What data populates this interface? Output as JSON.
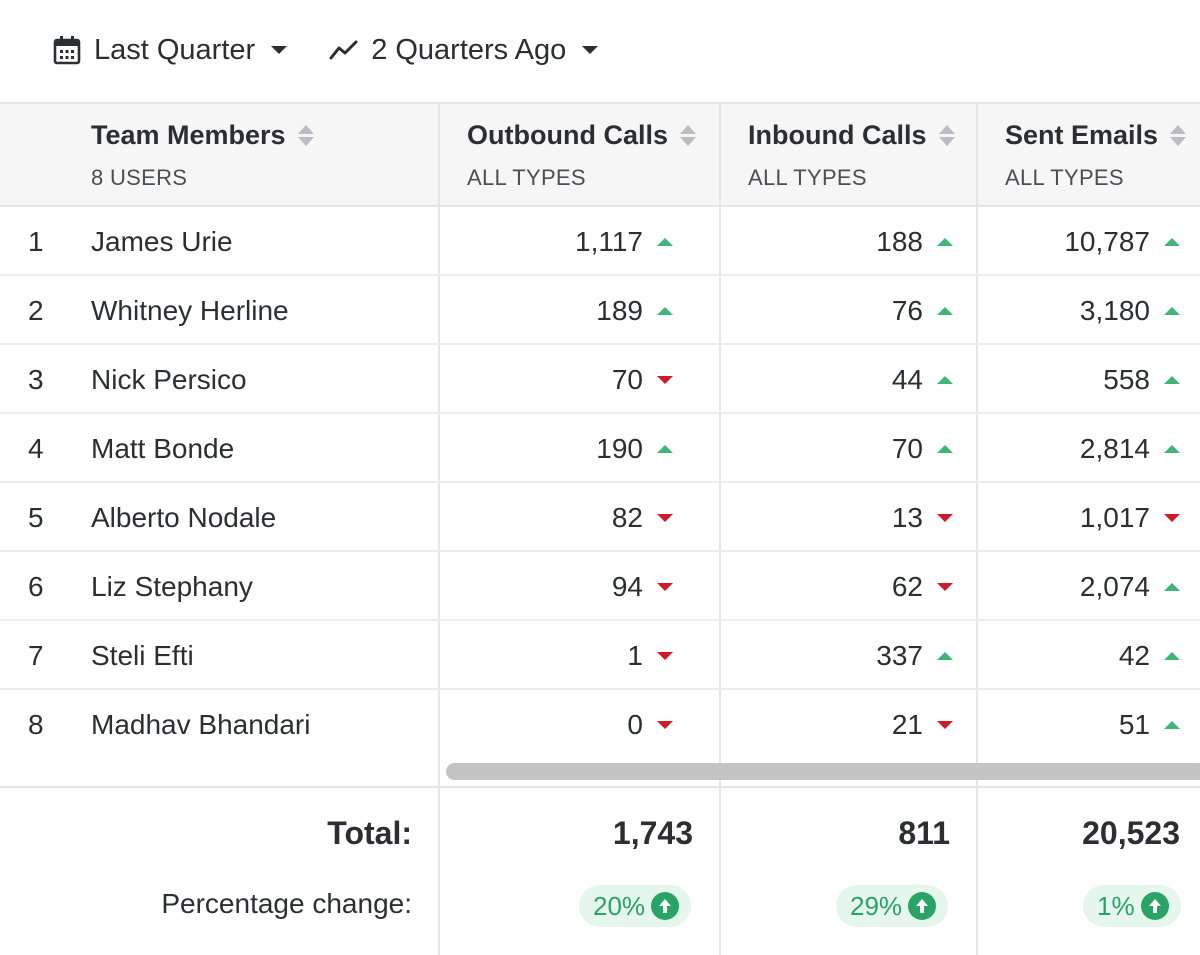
{
  "filters": {
    "period": {
      "label": "Last Quarter",
      "icon": "calendar-icon"
    },
    "compare": {
      "label": "2 Quarters Ago",
      "icon": "trend-line-icon"
    }
  },
  "table": {
    "columns": [
      {
        "title": "Team Members",
        "subtitle": "8 USERS"
      },
      {
        "title": "Outbound Calls",
        "subtitle": "ALL TYPES"
      },
      {
        "title": "Inbound Calls",
        "subtitle": "ALL TYPES"
      },
      {
        "title": "Sent Emails",
        "subtitle": "ALL TYPES"
      }
    ],
    "rows": [
      {
        "rank": "1",
        "name": "James Urie",
        "outbound": "1,117",
        "outbound_trend": "up",
        "inbound": "188",
        "inbound_trend": "up",
        "emails": "10,787",
        "emails_trend": "up"
      },
      {
        "rank": "2",
        "name": "Whitney Herline",
        "outbound": "189",
        "outbound_trend": "up",
        "inbound": "76",
        "inbound_trend": "up",
        "emails": "3,180",
        "emails_trend": "up"
      },
      {
        "rank": "3",
        "name": "Nick Persico",
        "outbound": "70",
        "outbound_trend": "down",
        "inbound": "44",
        "inbound_trend": "up",
        "emails": "558",
        "emails_trend": "up"
      },
      {
        "rank": "4",
        "name": "Matt Bonde",
        "outbound": "190",
        "outbound_trend": "up",
        "inbound": "70",
        "inbound_trend": "up",
        "emails": "2,814",
        "emails_trend": "up"
      },
      {
        "rank": "5",
        "name": "Alberto Nodale",
        "outbound": "82",
        "outbound_trend": "down",
        "inbound": "13",
        "inbound_trend": "down",
        "emails": "1,017",
        "emails_trend": "down"
      },
      {
        "rank": "6",
        "name": "Liz Stephany",
        "outbound": "94",
        "outbound_trend": "down",
        "inbound": "62",
        "inbound_trend": "down",
        "emails": "2,074",
        "emails_trend": "up"
      },
      {
        "rank": "7",
        "name": "Steli Efti",
        "outbound": "1",
        "outbound_trend": "down",
        "inbound": "337",
        "inbound_trend": "up",
        "emails": "42",
        "emails_trend": "up"
      },
      {
        "rank": "8",
        "name": "Madhav Bhandari",
        "outbound": "0",
        "outbound_trend": "down",
        "inbound": "21",
        "inbound_trend": "down",
        "emails": "51",
        "emails_trend": "up"
      }
    ],
    "footer": {
      "total_label": "Total:",
      "pct_label": "Percentage change:",
      "totals": {
        "outbound": "1,743",
        "inbound": "811",
        "emails": "20,523"
      },
      "pct": {
        "outbound": "20%",
        "inbound": "29%",
        "emails": "1%"
      }
    }
  },
  "colors": {
    "up": "#3fb57a",
    "down": "#d0192a",
    "pill_bg": "#e5f6ec",
    "pill_fg": "#2aa366"
  }
}
